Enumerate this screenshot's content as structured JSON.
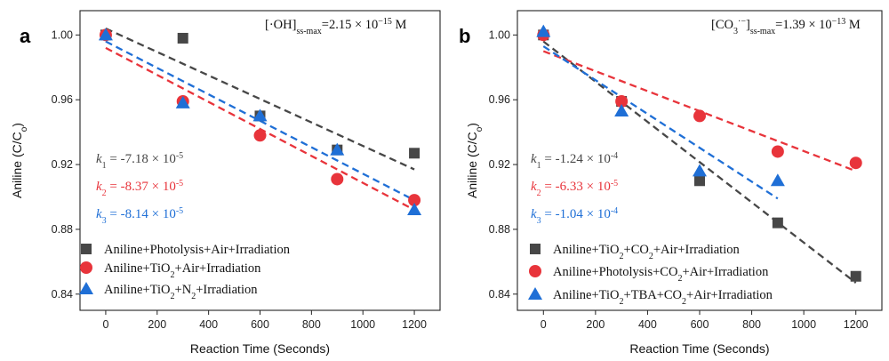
{
  "chart_data": [
    {
      "panel_label": "a",
      "type": "scatter",
      "xlabel": "Reaction Time (Seconds)",
      "ylabel": "Aniline (C/C0)",
      "ylabel_main": "Aniline  (C/C",
      "ylabel_sub": "o",
      "ylabel_close": ")",
      "xlim": [
        -100,
        1300
      ],
      "ylim": [
        0.83,
        1.015
      ],
      "xticks": [
        0,
        200,
        400,
        600,
        800,
        1000,
        1200
      ],
      "yticks": [
        0.84,
        0.88,
        0.92,
        0.96,
        1.0
      ],
      "ytick_labels": [
        "0.84",
        "0.88",
        "0.92",
        "0.96",
        "1.00"
      ],
      "annotation": {
        "pre": "[·OH]",
        "sub": "ss-max",
        "mid": "=2.15 × 10",
        "sup": "−15",
        "post": " M"
      },
      "series": [
        {
          "name": "Aniline+Photolysis+Air+Irradiation",
          "marker": "square",
          "color": "#474747",
          "x": [
            0,
            300,
            600,
            900,
            1200
          ],
          "y": [
            1.0,
            0.998,
            0.95,
            0.929,
            0.927
          ],
          "fit": [
            [
              0,
              1.004
            ],
            [
              1200,
              0.917
            ]
          ],
          "k": {
            "name": "k",
            "index": "1",
            "value": " = -7.18 × 10",
            "exp": "-5"
          }
        },
        {
          "name": "Aniline+TiO2+Air+Irradiation",
          "marker": "circle",
          "color": "#e8343b",
          "x": [
            0,
            300,
            600,
            900,
            1200
          ],
          "y": [
            1.0,
            0.959,
            0.938,
            0.911,
            0.898
          ],
          "fit": [
            [
              0,
              0.992
            ],
            [
              1200,
              0.892
            ]
          ],
          "k": {
            "name": "k",
            "index": "2",
            "value": " = -8.37 × 10",
            "exp": "-5"
          }
        },
        {
          "name": "Aniline+TiO2+N2+Irradiation",
          "marker": "triangle",
          "color": "#1f6fd6",
          "x": [
            0,
            300,
            600,
            900,
            1200
          ],
          "y": [
            1.0,
            0.958,
            0.95,
            0.929,
            0.892
          ],
          "fit": [
            [
              0,
              0.996
            ],
            [
              1200,
              0.898
            ]
          ],
          "k": {
            "name": "k",
            "index": "3",
            "value": " = -8.14 × 10",
            "exp": "-5"
          }
        }
      ],
      "legend": [
        {
          "parts": [
            {
              "t": "Aniline+Photolysis+Air+Irradiation"
            }
          ]
        },
        {
          "parts": [
            {
              "t": "Aniline+TiO"
            },
            {
              "t": "2",
              "sub": true
            },
            {
              "t": "+Air+Irradiation"
            }
          ]
        },
        {
          "parts": [
            {
              "t": "Aniline+TiO"
            },
            {
              "t": "2",
              "sub": true
            },
            {
              "t": "+N"
            },
            {
              "t": "2",
              "sub": true
            },
            {
              "t": "+Irradiation"
            }
          ]
        }
      ]
    },
    {
      "panel_label": "b",
      "type": "scatter",
      "xlabel": "Reaction Time (Seconds)",
      "ylabel": "Aniline (C/C0)",
      "ylabel_main": "Aniline  (C/C",
      "ylabel_sub": "o",
      "ylabel_close": ")",
      "xlim": [
        -100,
        1300
      ],
      "ylim": [
        0.83,
        1.015
      ],
      "xticks": [
        0,
        200,
        400,
        600,
        800,
        1000,
        1200
      ],
      "yticks": [
        0.84,
        0.88,
        0.92,
        0.96,
        1.0
      ],
      "ytick_labels": [
        "0.84",
        "0.88",
        "0.92",
        "0.96",
        "1.00"
      ],
      "annotation": {
        "pre": "[CO",
        "sub1": "3",
        "sup1": "·−",
        "pre2": "]",
        "sub": "ss-max",
        "mid": "=1.39 × 10",
        "sup": "−13",
        "post": " M"
      },
      "series": [
        {
          "name": "Aniline+TiO2+CO2+Air+Irradiation",
          "marker": "square",
          "color": "#474747",
          "x": [
            0,
            300,
            600,
            900,
            1200
          ],
          "y": [
            1.0,
            0.959,
            0.91,
            0.884,
            0.851
          ],
          "fit": [
            [
              0,
              0.996
            ],
            [
              1200,
              0.847
            ]
          ],
          "k": {
            "name": "k",
            "index": "1",
            "value": " = -1.24 × 10",
            "exp": "-4"
          }
        },
        {
          "name": "Aniline+Photolysis+CO2+Air+Irradiation",
          "marker": "circle",
          "color": "#e8343b",
          "x": [
            0,
            300,
            600,
            900,
            1200
          ],
          "y": [
            1.0,
            0.959,
            0.95,
            0.928,
            0.921
          ],
          "fit": [
            [
              0,
              0.99
            ],
            [
              1200,
              0.916
            ]
          ],
          "k": {
            "name": "k",
            "index": "2",
            "value": " = -6.33 × 10",
            "exp": "-5"
          }
        },
        {
          "name": "Aniline+TiO2+TBA+CO2+Air+Irradiation",
          "marker": "triangle",
          "color": "#1f6fd6",
          "x": [
            0,
            300,
            600,
            900
          ],
          "y": [
            1.002,
            0.953,
            0.916,
            0.91
          ],
          "fit": [
            [
              0,
              0.993
            ],
            [
              900,
              0.899
            ]
          ],
          "k": {
            "name": "k",
            "index": "3",
            "value": " = -1.04 × 10",
            "exp": "-4"
          }
        }
      ],
      "legend": [
        {
          "parts": [
            {
              "t": "Aniline+TiO"
            },
            {
              "t": "2",
              "sub": true
            },
            {
              "t": "+CO"
            },
            {
              "t": "2",
              "sub": true
            },
            {
              "t": "+Air+Irradiation"
            }
          ]
        },
        {
          "parts": [
            {
              "t": "Aniline+Photolysis+CO"
            },
            {
              "t": "2",
              "sub": true
            },
            {
              "t": "+Air+Irradiation"
            }
          ]
        },
        {
          "parts": [
            {
              "t": "Aniline+TiO"
            },
            {
              "t": "2",
              "sub": true
            },
            {
              "t": "+TBA+CO"
            },
            {
              "t": "2",
              "sub": true
            },
            {
              "t": "+Air+Irradiation"
            }
          ]
        }
      ]
    }
  ]
}
